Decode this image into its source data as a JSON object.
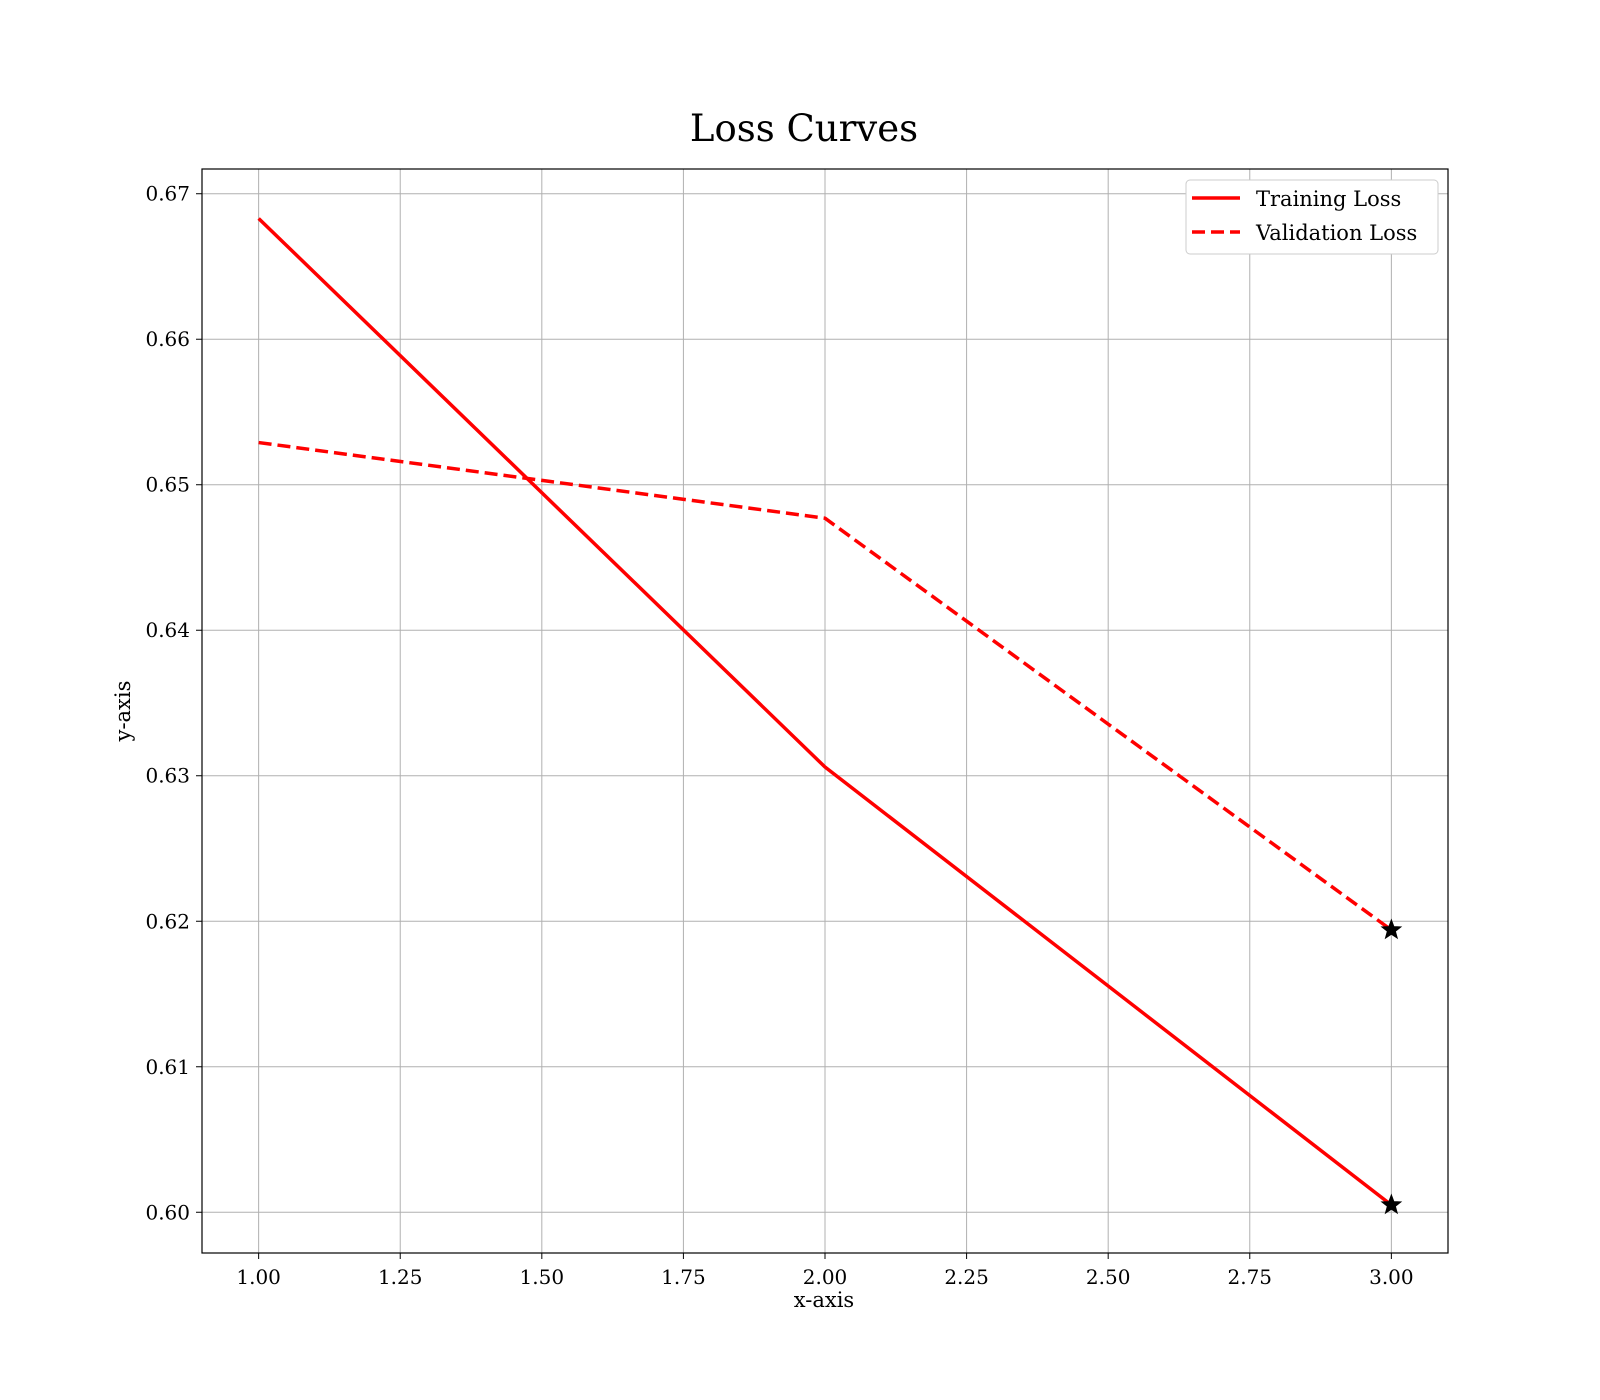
{
  "chart_data": {
    "type": "line",
    "title": "Loss Curves",
    "xlabel": "x-axis",
    "ylabel": "y-axis",
    "xlim": [
      0.9,
      3.1
    ],
    "ylim": [
      0.5972,
      0.6717
    ],
    "xticks": [
      1.0,
      1.25,
      1.5,
      1.75,
      2.0,
      2.25,
      2.5,
      2.75,
      3.0
    ],
    "xtick_labels": [
      "1.00",
      "1.25",
      "1.50",
      "1.75",
      "2.00",
      "2.25",
      "2.50",
      "2.75",
      "3.00"
    ],
    "yticks": [
      0.6,
      0.61,
      0.62,
      0.63,
      0.64,
      0.65,
      0.66,
      0.67
    ],
    "ytick_labels": [
      "0.60",
      "0.61",
      "0.62",
      "0.63",
      "0.64",
      "0.65",
      "0.66",
      "0.67"
    ],
    "grid": true,
    "legend_position": "top-right",
    "x": [
      1,
      2,
      3
    ],
    "series": [
      {
        "name": "Training Loss",
        "values": [
          0.6683,
          0.6306,
          0.6005
        ],
        "color": "#ff0000",
        "line_style": "solid",
        "end_marker": "star"
      },
      {
        "name": "Validation Loss",
        "values": [
          0.6529,
          0.6477,
          0.6194
        ],
        "color": "#ff0000",
        "line_style": "dashed",
        "end_marker": "star"
      }
    ],
    "marker_color": "#000000"
  }
}
